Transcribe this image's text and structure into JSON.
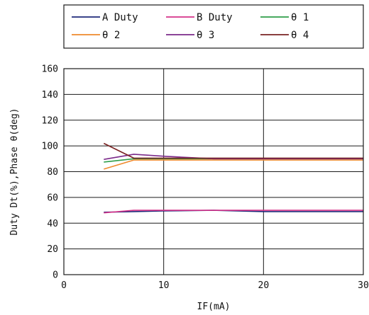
{
  "chart_data": {
    "type": "line",
    "xlabel": "IF(mA)",
    "ylabel": "Duty Dt(%),Phase θ(deg)",
    "xlim": [
      0,
      30
    ],
    "ylim": [
      0,
      160
    ],
    "x_ticks": [
      0,
      10,
      20,
      30
    ],
    "y_ticks": [
      0,
      20,
      40,
      60,
      80,
      100,
      120,
      140,
      160
    ],
    "grid": true,
    "legend_position": "top",
    "series": [
      {
        "name": "A Duty",
        "color": "#1f2a7a",
        "x": [
          4,
          7,
          10,
          15,
          20,
          30
        ],
        "y": [
          48.5,
          49,
          49.5,
          50,
          49,
          49
        ]
      },
      {
        "name": "B Duty",
        "color": "#d6338a",
        "x": [
          4,
          7,
          10,
          15,
          20,
          30
        ],
        "y": [
          48,
          50,
          50,
          50,
          50,
          50
        ]
      },
      {
        "name": "θ 1",
        "color": "#2e9e4a",
        "x": [
          4,
          7,
          10,
          15,
          20,
          30
        ],
        "y": [
          87.5,
          90,
          90,
          90,
          90,
          90
        ]
      },
      {
        "name": "θ 2",
        "color": "#ee8a2c",
        "x": [
          4,
          7,
          10,
          15,
          20,
          30
        ],
        "y": [
          82,
          89,
          89,
          89,
          89,
          89
        ]
      },
      {
        "name": "θ 3",
        "color": "#7b2a8a",
        "x": [
          4,
          7,
          10,
          15,
          20,
          30
        ],
        "y": [
          89.5,
          93.5,
          92,
          90,
          90,
          90
        ]
      },
      {
        "name": "θ 4",
        "color": "#7a2222",
        "x": [
          4,
          7,
          10,
          15,
          20,
          30
        ],
        "y": [
          102,
          90.5,
          90.5,
          90.5,
          90.5,
          90.5
        ]
      }
    ]
  }
}
